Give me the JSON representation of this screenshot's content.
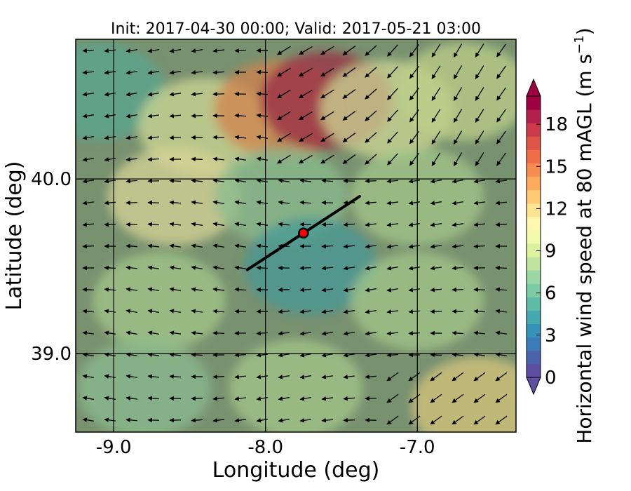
{
  "chart_data": {
    "type": "heatmap",
    "title": "Init: 2017-04-30 00:00; Valid: 2017-05-21 03:00",
    "xlabel": "Longitude (deg)",
    "ylabel": "Latitude (deg)",
    "xlim": [
      -9.25,
      -6.35
    ],
    "ylim": [
      38.55,
      40.8
    ],
    "x_ticks": [
      {
        "value": -9.0,
        "label": "-9.0"
      },
      {
        "value": -8.0,
        "label": "-8.0"
      },
      {
        "value": -7.0,
        "label": "-7.0"
      }
    ],
    "y_ticks": [
      {
        "value": 40.0,
        "label": "40.0"
      },
      {
        "value": 39.0,
        "label": "39.0"
      }
    ],
    "grid": true,
    "colorbar": {
      "label_main": "Horizontal wind speed at 80 mAGL (m s",
      "label_sup": "−1",
      "label_close": ")",
      "min": 0,
      "max": 20,
      "extend": "both",
      "ticks": [
        {
          "value": 0,
          "label": "0"
        },
        {
          "value": 3,
          "label": "3"
        },
        {
          "value": 6,
          "label": "6"
        },
        {
          "value": 9,
          "label": "9"
        },
        {
          "value": 12,
          "label": "12"
        },
        {
          "value": 15,
          "label": "15"
        },
        {
          "value": 18,
          "label": "18"
        }
      ],
      "colors": [
        "#5e4fa2",
        "#4a63ac",
        "#3b7bb8",
        "#3592b8",
        "#46a9b0",
        "#5ebca7",
        "#7ccba4",
        "#9dd7a4",
        "#bee5a0",
        "#dcf09e",
        "#f3f9ac",
        "#fff6b0",
        "#fee390",
        "#fdc974",
        "#fcaa5f",
        "#f88d52",
        "#ef6e48",
        "#df5548",
        "#cc3a4c",
        "#b2204b",
        "#9e0142"
      ],
      "under_color": "#5e4fa2",
      "over_color": "#9e0142"
    },
    "transect": {
      "start": [
        -8.12,
        39.48
      ],
      "end": [
        -7.38,
        39.9
      ]
    },
    "marker": {
      "lon": -7.75,
      "lat": 39.69,
      "color": "#ff0000"
    },
    "wind_regions": [
      {
        "lon": -9.1,
        "lat": 40.5,
        "speed": 5
      },
      {
        "lon": -8.4,
        "lat": 40.3,
        "speed": 10
      },
      {
        "lon": -7.9,
        "lat": 40.4,
        "speed": 15
      },
      {
        "lon": -7.6,
        "lat": 40.45,
        "speed": 19
      },
      {
        "lon": -7.2,
        "lat": 40.4,
        "speed": 10
      },
      {
        "lon": -6.7,
        "lat": 40.5,
        "speed": 9
      },
      {
        "lon": -8.6,
        "lat": 39.9,
        "speed": 11
      },
      {
        "lon": -7.9,
        "lat": 39.9,
        "speed": 7
      },
      {
        "lon": -7.0,
        "lat": 39.9,
        "speed": 8
      },
      {
        "lon": -8.7,
        "lat": 39.3,
        "speed": 8
      },
      {
        "lon": -7.7,
        "lat": 39.5,
        "speed": 4
      },
      {
        "lon": -7.0,
        "lat": 39.3,
        "speed": 8
      },
      {
        "lon": -8.8,
        "lat": 38.8,
        "speed": 7
      },
      {
        "lon": -7.8,
        "lat": 38.8,
        "speed": 8
      },
      {
        "lon": -6.6,
        "lat": 38.7,
        "speed": 12
      }
    ]
  }
}
